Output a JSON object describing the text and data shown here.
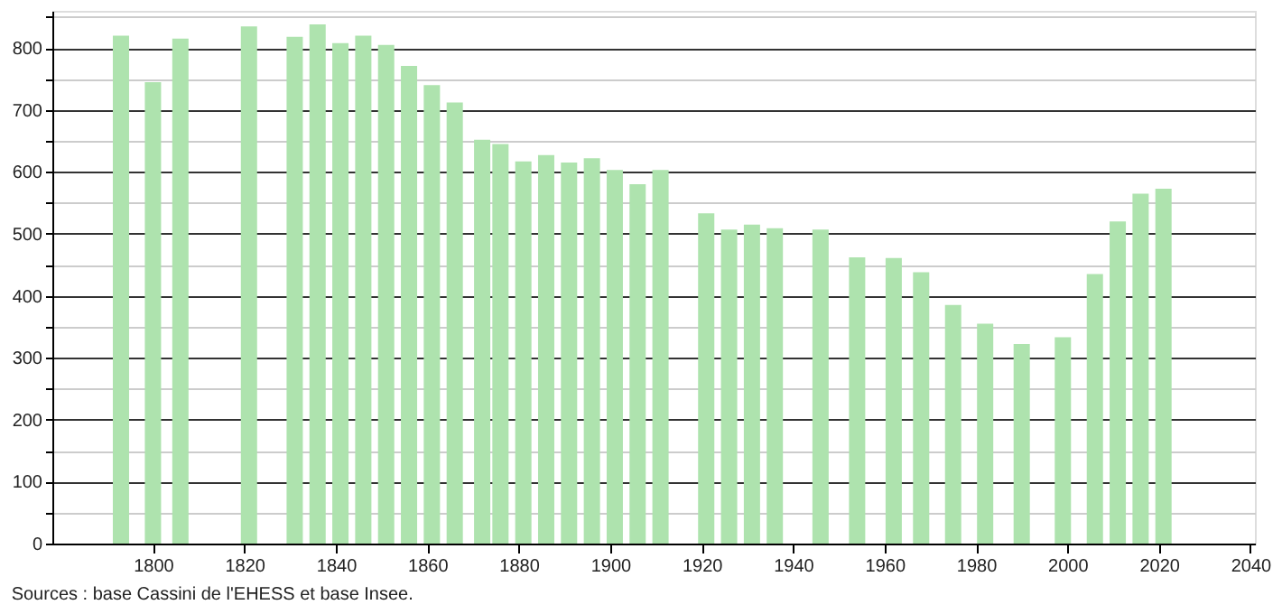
{
  "chart_data": {
    "type": "bar",
    "color": "#aee3ae",
    "x": [
      1793,
      1800,
      1806,
      1821,
      1831,
      1836,
      1841,
      1846,
      1851,
      1856,
      1861,
      1866,
      1872,
      1876,
      1881,
      1886,
      1891,
      1896,
      1901,
      1906,
      1911,
      1921,
      1926,
      1931,
      1936,
      1946,
      1954,
      1962,
      1968,
      1975,
      1982,
      1990,
      1999,
      2006,
      2011,
      2016,
      2021
    ],
    "values": [
      820,
      745,
      815,
      835,
      818,
      838,
      808,
      820,
      805,
      771,
      740,
      712,
      652,
      645,
      617,
      627,
      615,
      622,
      603,
      580,
      603,
      533,
      507,
      515,
      509,
      507,
      462,
      461,
      438,
      385,
      355,
      322,
      333,
      435,
      520,
      565,
      573
    ],
    "xlim": [
      1778,
      2041
    ],
    "xticks": [
      1800,
      1820,
      1840,
      1860,
      1880,
      1900,
      1920,
      1940,
      1960,
      1980,
      2000,
      2020,
      2040
    ],
    "ylim": [
      0,
      860
    ],
    "yticks": [
      0,
      {
        "value": 50,
        "label": null
      },
      100,
      {
        "value": 150,
        "label": null
      },
      200,
      {
        "value": 250,
        "label": null
      },
      300,
      {
        "value": 350,
        "label": null
      },
      400,
      {
        "value": 450,
        "label": null
      },
      500,
      {
        "value": 550,
        "label": null
      },
      600,
      {
        "value": 650,
        "label": null
      },
      700,
      {
        "value": 750,
        "label": null
      },
      800,
      {
        "value": 850,
        "label": null
      }
    ],
    "grid": "y",
    "annotations": [
      "Sources : base Cassini de l'EHESS et base Insee."
    ]
  }
}
